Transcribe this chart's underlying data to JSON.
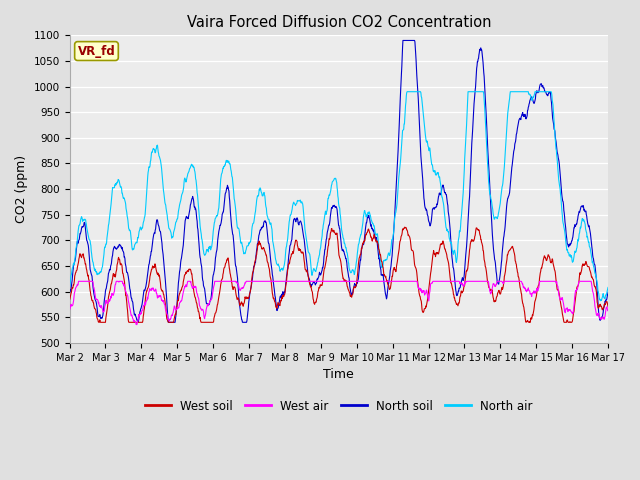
{
  "title": "Vaira Forced Diffusion CO2 Concentration",
  "xlabel": "Time",
  "ylabel": "CO2 (ppm)",
  "ylim": [
    500,
    1100
  ],
  "yticks": [
    500,
    550,
    600,
    650,
    700,
    750,
    800,
    850,
    900,
    950,
    1000,
    1050,
    1100
  ],
  "n_days": 15,
  "points_per_day": 96,
  "xtick_labels": [
    "Mar 2",
    "Mar 3",
    "Mar 4",
    "Mar 5",
    "Mar 6",
    "Mar 7",
    "Mar 8",
    "Mar 9",
    "Mar 10",
    "Mar 11",
    "Mar 12",
    "Mar 13",
    "Mar 14",
    "Mar 15",
    "Mar 16",
    "Mar 17"
  ],
  "legend_labels": [
    "West soil",
    "West air",
    "North soil",
    "North air"
  ],
  "colors": {
    "west_soil": "#cc0000",
    "west_air": "#ff00ff",
    "north_soil": "#0000cc",
    "north_air": "#00ccff"
  },
  "annotation_text": "VR_fd",
  "annotation_color": "#990000",
  "annotation_bg": "#ffffcc",
  "annotation_edge": "#999900",
  "bg_color": "#e0e0e0",
  "plot_bg_color": "#ececec",
  "grid_color": "#ffffff",
  "linewidth": 0.8,
  "figsize": [
    6.4,
    4.8
  ],
  "dpi": 100
}
